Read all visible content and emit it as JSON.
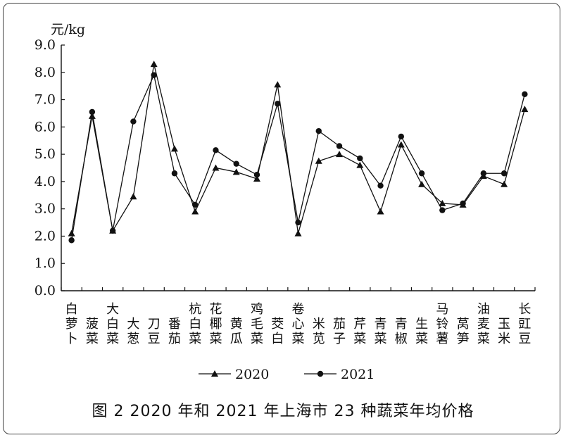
{
  "figure": {
    "caption": "图 2   2020 年和 2021 年上海市 23 种蔬菜年均价格"
  },
  "chart_data": {
    "type": "line",
    "title": "",
    "xlabel": "",
    "ylabel": "元/kg",
    "ylim": [
      0,
      9
    ],
    "yticks": [
      "0.0",
      "1.0",
      "2.0",
      "3.0",
      "4.0",
      "5.0",
      "6.0",
      "7.0",
      "8.0",
      "9.0"
    ],
    "grid": false,
    "legend_position": "bottom",
    "categories": [
      "白萝卜",
      "菠菜",
      "大白菜",
      "大葱",
      "刀豆",
      "番茄",
      "杭白菜",
      "花椰菜",
      "黄瓜",
      "鸡毛菜",
      "茭白",
      "卷心菜",
      "米苋",
      "茄子",
      "芹菜",
      "青菜",
      "青椒",
      "生菜",
      "马铃薯",
      "莴笋",
      "油麦菜",
      "玉米",
      "长豇豆"
    ],
    "series": [
      {
        "name": "2020",
        "marker": "triangle",
        "values": [
          2.1,
          6.4,
          2.2,
          3.45,
          8.3,
          5.2,
          2.9,
          4.5,
          4.35,
          4.1,
          7.55,
          2.1,
          4.75,
          5.0,
          4.6,
          2.9,
          5.35,
          3.9,
          3.2,
          3.15,
          4.2,
          3.9,
          6.65
        ]
      },
      {
        "name": "2021",
        "marker": "circle",
        "values": [
          1.85,
          6.55,
          2.2,
          6.2,
          7.9,
          4.3,
          3.15,
          5.15,
          4.65,
          4.25,
          6.85,
          2.5,
          5.85,
          5.3,
          4.85,
          3.85,
          5.65,
          4.3,
          2.95,
          3.2,
          4.3,
          4.3,
          7.2
        ]
      }
    ]
  }
}
